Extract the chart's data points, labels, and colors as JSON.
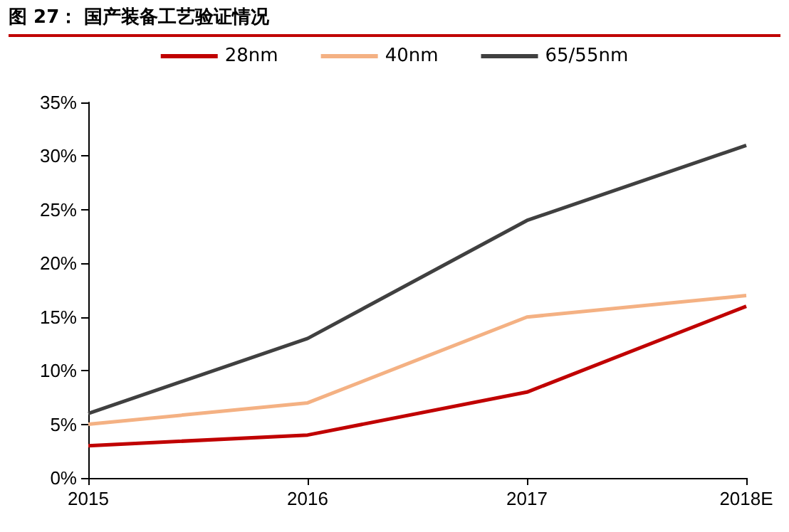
{
  "chart_data": {
    "type": "line",
    "title": "图 27：  国产装备工艺验证情况",
    "categories": [
      "2015",
      "2016",
      "2017",
      "2018E"
    ],
    "series": [
      {
        "name": "28nm",
        "color": "#c00000",
        "values": [
          3,
          4,
          8,
          16
        ]
      },
      {
        "name": "40nm",
        "color": "#f4b183",
        "values": [
          5,
          7,
          15,
          17
        ]
      },
      {
        "name": "65/55nm",
        "color": "#404040",
        "values": [
          6,
          13,
          24,
          31
        ]
      }
    ],
    "ylim": [
      0,
      35
    ],
    "yticks": [
      {
        "value": 0,
        "label": "0%"
      },
      {
        "value": 5,
        "label": "5%"
      },
      {
        "value": 10,
        "label": "10%"
      },
      {
        "value": 15,
        "label": "15%"
      },
      {
        "value": 20,
        "label": "20%"
      },
      {
        "value": 25,
        "label": "25%"
      },
      {
        "value": 30,
        "label": "30%"
      },
      {
        "value": 35,
        "label": "35%"
      }
    ],
    "legend": "top",
    "grid": false,
    "marker": "none",
    "line_style": "solid"
  }
}
